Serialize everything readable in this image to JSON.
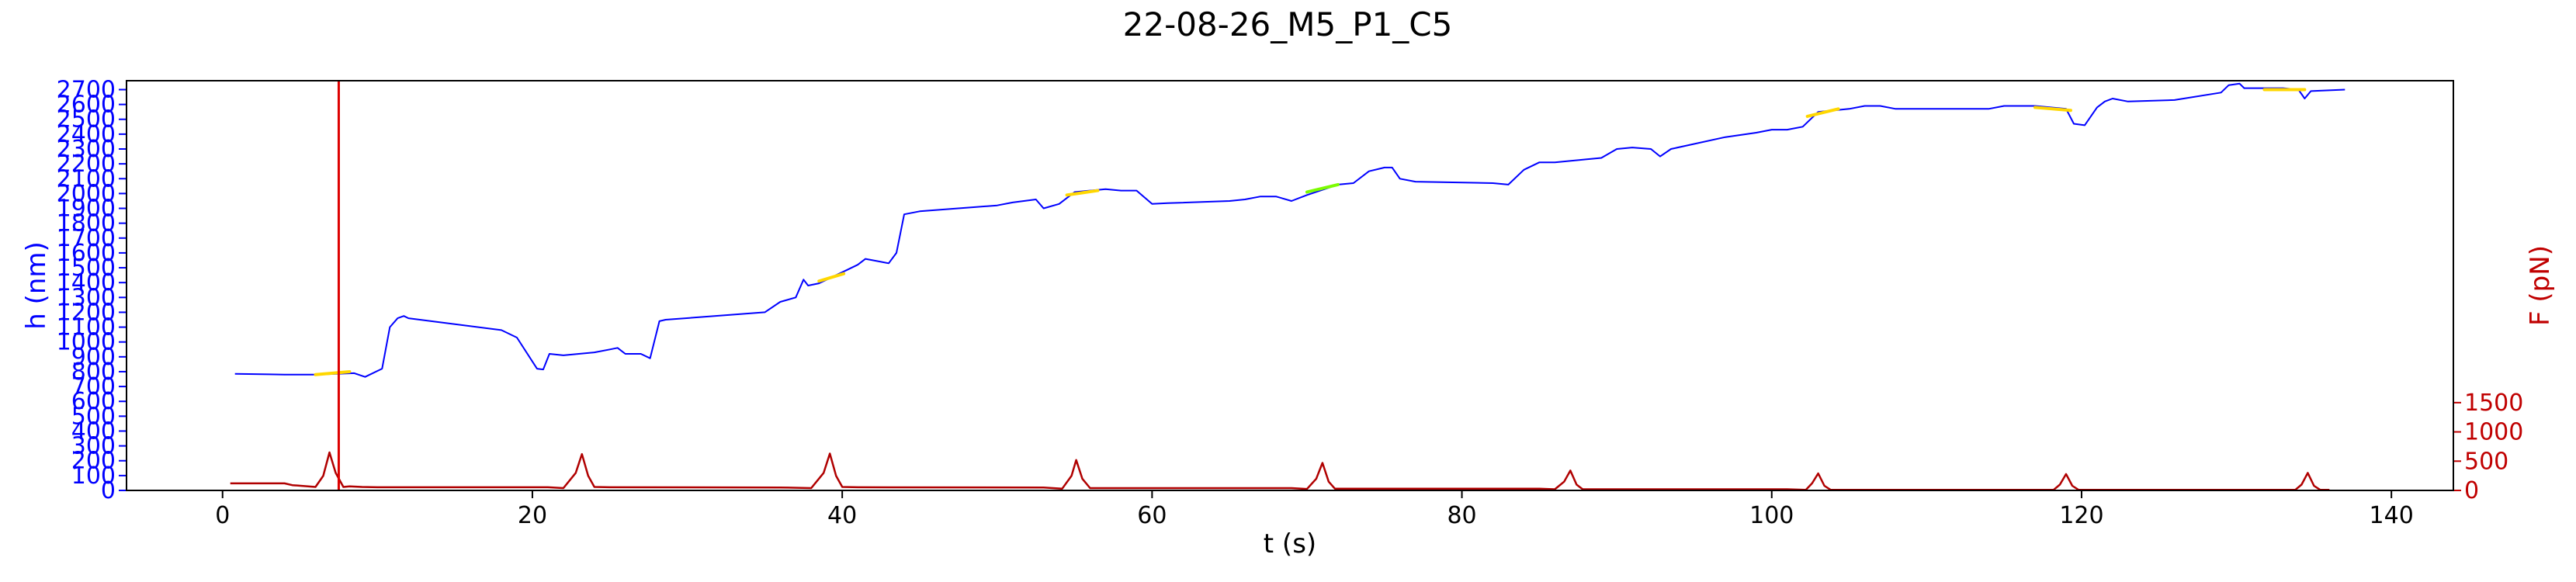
{
  "chart_data": {
    "type": "line",
    "title": "22-08-26_M5_P1_C5",
    "xlabel": "t (s)",
    "ylabel_left": "h (nm)",
    "ylabel_right": "F (pN)",
    "xlim": [
      -6.2,
      144
    ],
    "ylim_left": [
      0,
      2760
    ],
    "ylim_right": [
      0,
      7000
    ],
    "x_ticks": [
      0,
      20,
      40,
      60,
      80,
      100,
      120,
      140
    ],
    "x_tick_labels": [
      "0",
      "20",
      "40",
      "60",
      "80",
      "100",
      "120",
      "140"
    ],
    "y_ticks_left": [
      0,
      100,
      200,
      300,
      400,
      500,
      600,
      700,
      800,
      900,
      1000,
      1100,
      1200,
      1300,
      1400,
      1500,
      1600,
      1700,
      1800,
      1900,
      2000,
      2100,
      2200,
      2300,
      2400,
      2500,
      2600,
      2700
    ],
    "y_tick_labels_left": [
      "0",
      "100",
      "200",
      "300",
      "400",
      "500",
      "600",
      "700",
      "800",
      "900",
      "1000",
      "1100",
      "1200",
      "1300",
      "1400",
      "1500",
      "1600",
      "1700",
      "1800",
      "1900",
      "2000",
      "2100",
      "2200",
      "2300",
      "2400",
      "2500",
      "2600",
      "2700"
    ],
    "y_ticks_right": [
      0,
      500,
      1000,
      1500
    ],
    "y_tick_labels_right": [
      "0",
      "500",
      "1000",
      "1500"
    ],
    "grid": false,
    "colors": {
      "height": "#0000ff",
      "force": "#b00000",
      "marker": "#dd0000",
      "highlight_yellow": "#ffd700",
      "highlight_green": "#7cfc00"
    },
    "vertical_marker_x": 7.5,
    "series": [
      {
        "axis": "left",
        "color": "#0000ff",
        "points": [
          [
            0.8,
            785
          ],
          [
            3,
            782
          ],
          [
            4,
            780
          ],
          [
            6,
            780
          ],
          [
            8.5,
            790
          ],
          [
            9.2,
            765
          ],
          [
            10.3,
            820
          ],
          [
            10.8,
            1100
          ],
          [
            11.3,
            1160
          ],
          [
            11.7,
            1175
          ],
          [
            12,
            1160
          ],
          [
            18,
            1080
          ],
          [
            19,
            1030
          ],
          [
            20.3,
            820
          ],
          [
            20.7,
            815
          ],
          [
            21.1,
            920
          ],
          [
            22,
            910
          ],
          [
            24,
            930
          ],
          [
            25,
            950
          ],
          [
            25.5,
            960
          ],
          [
            26,
            920
          ],
          [
            27,
            920
          ],
          [
            27.6,
            890
          ],
          [
            28.2,
            1140
          ],
          [
            28.6,
            1150
          ],
          [
            35,
            1200
          ],
          [
            36,
            1270
          ],
          [
            37,
            1300
          ],
          [
            37.5,
            1420
          ],
          [
            37.8,
            1380
          ],
          [
            38.5,
            1395
          ],
          [
            39,
            1420
          ],
          [
            40,
            1470
          ],
          [
            41,
            1520
          ],
          [
            41.5,
            1560
          ],
          [
            42.5,
            1540
          ],
          [
            43,
            1530
          ],
          [
            43.5,
            1600
          ],
          [
            44,
            1860
          ],
          [
            45,
            1880
          ],
          [
            50,
            1920
          ],
          [
            51,
            1940
          ],
          [
            52.5,
            1960
          ],
          [
            53,
            1900
          ],
          [
            54,
            1930
          ],
          [
            55,
            2010
          ],
          [
            56,
            2020
          ],
          [
            57,
            2030
          ],
          [
            58,
            2020
          ],
          [
            59,
            2020
          ],
          [
            60,
            1930
          ],
          [
            61,
            1935
          ],
          [
            65,
            1950
          ],
          [
            66,
            1960
          ],
          [
            67,
            1980
          ],
          [
            68,
            1980
          ],
          [
            69,
            1950
          ],
          [
            70,
            1990
          ],
          [
            72,
            2060
          ],
          [
            73,
            2070
          ],
          [
            74,
            2150
          ],
          [
            75,
            2175
          ],
          [
            75.5,
            2175
          ],
          [
            76,
            2100
          ],
          [
            77,
            2080
          ],
          [
            82,
            2070
          ],
          [
            83,
            2060
          ],
          [
            84,
            2160
          ],
          [
            85,
            2210
          ],
          [
            86,
            2210
          ],
          [
            88,
            2230
          ],
          [
            89,
            2240
          ],
          [
            90,
            2300
          ],
          [
            91,
            2310
          ],
          [
            92.2,
            2300
          ],
          [
            92.8,
            2250
          ],
          [
            93.5,
            2300
          ],
          [
            97,
            2380
          ],
          [
            99,
            2410
          ],
          [
            100,
            2430
          ],
          [
            101,
            2430
          ],
          [
            102,
            2450
          ],
          [
            103,
            2550
          ],
          [
            104,
            2560
          ],
          [
            105,
            2570
          ],
          [
            106,
            2590
          ],
          [
            107,
            2590
          ],
          [
            108,
            2570
          ],
          [
            114,
            2570
          ],
          [
            115,
            2590
          ],
          [
            117,
            2590
          ],
          [
            118,
            2580
          ],
          [
            119,
            2570
          ],
          [
            119.5,
            2470
          ],
          [
            120.2,
            2460
          ],
          [
            121,
            2580
          ],
          [
            121.5,
            2620
          ],
          [
            122,
            2640
          ],
          [
            123,
            2620
          ],
          [
            126,
            2630
          ],
          [
            129,
            2680
          ],
          [
            129.5,
            2730
          ],
          [
            130.2,
            2740
          ],
          [
            130.5,
            2710
          ],
          [
            133,
            2710
          ],
          [
            134,
            2700
          ],
          [
            134.4,
            2640
          ],
          [
            134.8,
            2690
          ],
          [
            137,
            2700
          ]
        ]
      },
      {
        "axis": "right",
        "color": "#b00000",
        "points": [
          [
            0.5,
            120
          ],
          [
            4,
            120
          ],
          [
            4.5,
            90
          ],
          [
            6,
            60
          ],
          [
            6.5,
            250
          ],
          [
            6.9,
            650
          ],
          [
            7.3,
            300
          ],
          [
            7.8,
            60
          ],
          [
            8.2,
            70
          ],
          [
            9,
            60
          ],
          [
            10,
            55
          ],
          [
            20,
            55
          ],
          [
            21,
            55
          ],
          [
            22,
            40
          ],
          [
            22.8,
            300
          ],
          [
            23.2,
            620
          ],
          [
            23.6,
            250
          ],
          [
            24,
            60
          ],
          [
            25,
            55
          ],
          [
            36,
            50
          ],
          [
            38,
            40
          ],
          [
            38.8,
            300
          ],
          [
            39.2,
            630
          ],
          [
            39.6,
            250
          ],
          [
            40,
            60
          ],
          [
            41,
            55
          ],
          [
            53,
            50
          ],
          [
            54.2,
            30
          ],
          [
            54.8,
            250
          ],
          [
            55.1,
            520
          ],
          [
            55.5,
            200
          ],
          [
            56,
            40
          ],
          [
            57,
            40
          ],
          [
            69,
            40
          ],
          [
            70,
            25
          ],
          [
            70.6,
            200
          ],
          [
            71,
            470
          ],
          [
            71.4,
            150
          ],
          [
            71.8,
            30
          ],
          [
            72,
            30
          ],
          [
            85,
            30
          ],
          [
            86,
            20
          ],
          [
            86.6,
            150
          ],
          [
            87,
            340
          ],
          [
            87.4,
            100
          ],
          [
            87.8,
            20
          ],
          [
            88,
            20
          ],
          [
            101,
            20
          ],
          [
            102.2,
            10
          ],
          [
            102.6,
            120
          ],
          [
            103,
            290
          ],
          [
            103.4,
            80
          ],
          [
            103.8,
            10
          ],
          [
            104,
            10
          ],
          [
            117,
            10
          ],
          [
            118.2,
            10
          ],
          [
            118.6,
            100
          ],
          [
            119,
            280
          ],
          [
            119.4,
            80
          ],
          [
            119.8,
            10
          ],
          [
            120,
            10
          ],
          [
            133,
            10
          ],
          [
            133.8,
            10
          ],
          [
            134.2,
            100
          ],
          [
            134.6,
            300
          ],
          [
            135,
            80
          ],
          [
            135.4,
            10
          ],
          [
            136,
            10
          ]
        ]
      }
    ],
    "highlights": [
      {
        "color": "#ffd700",
        "x": [
          6,
          8.2
        ],
        "y": [
          780,
          800
        ]
      },
      {
        "color": "#ffd700",
        "x": [
          38.5,
          40.1
        ],
        "y": [
          1410,
          1460
        ]
      },
      {
        "color": "#ffd700",
        "x": [
          54.5,
          56.5
        ],
        "y": [
          1990,
          2020
        ]
      },
      {
        "color": "#7cfc00",
        "x": [
          70,
          72
        ],
        "y": [
          2010,
          2060
        ]
      },
      {
        "color": "#ffd700",
        "x": [
          102.3,
          104.3
        ],
        "y": [
          2520,
          2570
        ]
      },
      {
        "color": "#ffd700",
        "x": [
          117,
          119.3
        ],
        "y": [
          2580,
          2560
        ]
      },
      {
        "color": "#ffd700",
        "x": [
          131.8,
          134.4
        ],
        "y": [
          2700,
          2700
        ]
      }
    ]
  }
}
